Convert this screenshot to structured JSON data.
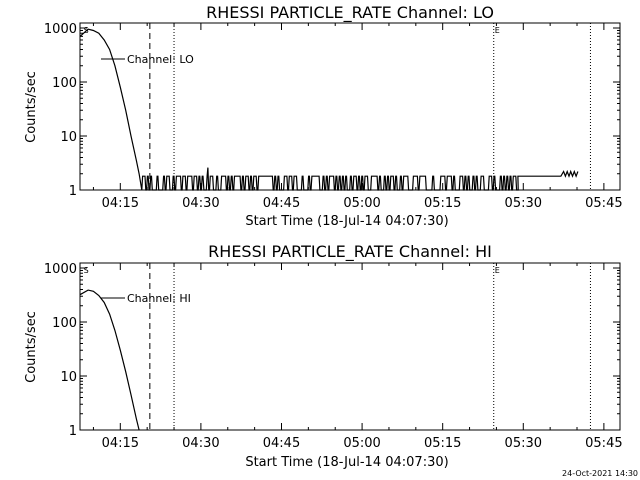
{
  "footer_timestamp": "24-Oct-2021 14:30",
  "chart_data": [
    {
      "type": "line",
      "title": "RHESSI PARTICLE_RATE Channel: LO",
      "xlabel": "Start Time (18-Jul-14 04:07:30)",
      "ylabel": "Counts/sec",
      "yscale": "log",
      "ylim": [
        1,
        1000
      ],
      "xlim": [
        "04:07:30",
        "05:48:00"
      ],
      "yticks": [
        {
          "value": 1,
          "label": "1"
        },
        {
          "value": 10,
          "label": "10"
        },
        {
          "value": 100,
          "label": "100"
        },
        {
          "value": 1000,
          "label": "1000"
        }
      ],
      "xticks": [
        {
          "time": "04:15",
          "label": "04:15"
        },
        {
          "time": "04:30",
          "label": "04:30"
        },
        {
          "time": "04:45",
          "label": "04:45"
        },
        {
          "time": "05:00",
          "label": "05:00"
        },
        {
          "time": "05:15",
          "label": "05:15"
        },
        {
          "time": "05:30",
          "label": "05:30"
        },
        {
          "time": "05:45",
          "label": "05:45"
        }
      ],
      "legend": {
        "label": "Channel: LO",
        "position": "top-left"
      },
      "markers": [
        {
          "time": "04:08:00",
          "label": "S",
          "style": "none"
        },
        {
          "time": "04:20:30",
          "label": "",
          "style": "dashed"
        },
        {
          "time": "04:25:00",
          "label": "",
          "style": "dotted"
        },
        {
          "time": "05:24:30",
          "label": "E",
          "style": "dotted"
        },
        {
          "time": "05:42:30",
          "label": "",
          "style": "dotted"
        }
      ],
      "series": [
        {
          "name": "Channel: LO",
          "points": [
            [
              "04:07:30",
              700
            ],
            [
              "04:09:00",
              950
            ],
            [
              "04:10:00",
              900
            ],
            [
              "04:11:00",
              800
            ],
            [
              "04:12:00",
              600
            ],
            [
              "04:13:00",
              400
            ],
            [
              "04:14:00",
              200
            ],
            [
              "04:15:00",
              80
            ],
            [
              "04:16:00",
              30
            ],
            [
              "04:17:00",
              10
            ],
            [
              "04:18:00",
              3.5
            ],
            [
              "04:18:30",
              2
            ],
            [
              "04:19:00",
              1
            ]
          ],
          "noise": {
            "from": "04:19:00",
            "to": "05:29:00",
            "low": 1,
            "high": 1.8,
            "spikes": [
              [
                "04:31:20",
                2.6
              ]
            ]
          },
          "tail": [
            [
              "05:29:00",
              1.8
            ],
            [
              "05:37:00",
              1.8
            ],
            [
              "05:37:30",
              2.2
            ],
            [
              "05:37:50",
              1.8
            ],
            [
              "05:38:10",
              2.2
            ],
            [
              "05:38:30",
              1.8
            ],
            [
              "05:38:50",
              2.2
            ],
            [
              "05:39:10",
              1.8
            ],
            [
              "05:39:30",
              2.2
            ],
            [
              "05:39:50",
              1.8
            ],
            [
              "05:40:10",
              2.2
            ]
          ]
        }
      ]
    },
    {
      "type": "line",
      "title": "RHESSI PARTICLE_RATE Channel: HI",
      "xlabel": "Start Time (18-Jul-14 04:07:30)",
      "ylabel": "Counts/sec",
      "yscale": "log",
      "ylim": [
        1,
        1000
      ],
      "xlim": [
        "04:07:30",
        "05:48:00"
      ],
      "yticks": [
        {
          "value": 1,
          "label": "1"
        },
        {
          "value": 10,
          "label": "10"
        },
        {
          "value": 100,
          "label": "100"
        },
        {
          "value": 1000,
          "label": "1000"
        }
      ],
      "xticks": [
        {
          "time": "04:15",
          "label": "04:15"
        },
        {
          "time": "04:30",
          "label": "04:30"
        },
        {
          "time": "04:45",
          "label": "04:45"
        },
        {
          "time": "05:00",
          "label": "05:00"
        },
        {
          "time": "05:15",
          "label": "05:15"
        },
        {
          "time": "05:30",
          "label": "05:30"
        },
        {
          "time": "05:45",
          "label": "05:45"
        }
      ],
      "legend": {
        "label": "Channel: HI",
        "position": "top-left"
      },
      "markers": [
        {
          "time": "04:08:00",
          "label": "S",
          "style": "none"
        },
        {
          "time": "04:20:30",
          "label": "",
          "style": "dashed"
        },
        {
          "time": "04:25:00",
          "label": "",
          "style": "dotted"
        },
        {
          "time": "05:24:30",
          "label": "E",
          "style": "dotted"
        },
        {
          "time": "05:42:30",
          "label": "",
          "style": "dotted"
        }
      ],
      "series": [
        {
          "name": "Channel: HI",
          "points": [
            [
              "04:07:30",
              320
            ],
            [
              "04:09:00",
              390
            ],
            [
              "04:10:00",
              370
            ],
            [
              "04:11:00",
              310
            ],
            [
              "04:12:00",
              230
            ],
            [
              "04:13:00",
              140
            ],
            [
              "04:14:00",
              70
            ],
            [
              "04:15:00",
              30
            ],
            [
              "04:16:00",
              12
            ],
            [
              "04:17:00",
              4.5
            ],
            [
              "04:18:00",
              1.6
            ],
            [
              "04:18:30",
              1
            ]
          ]
        }
      ]
    }
  ]
}
